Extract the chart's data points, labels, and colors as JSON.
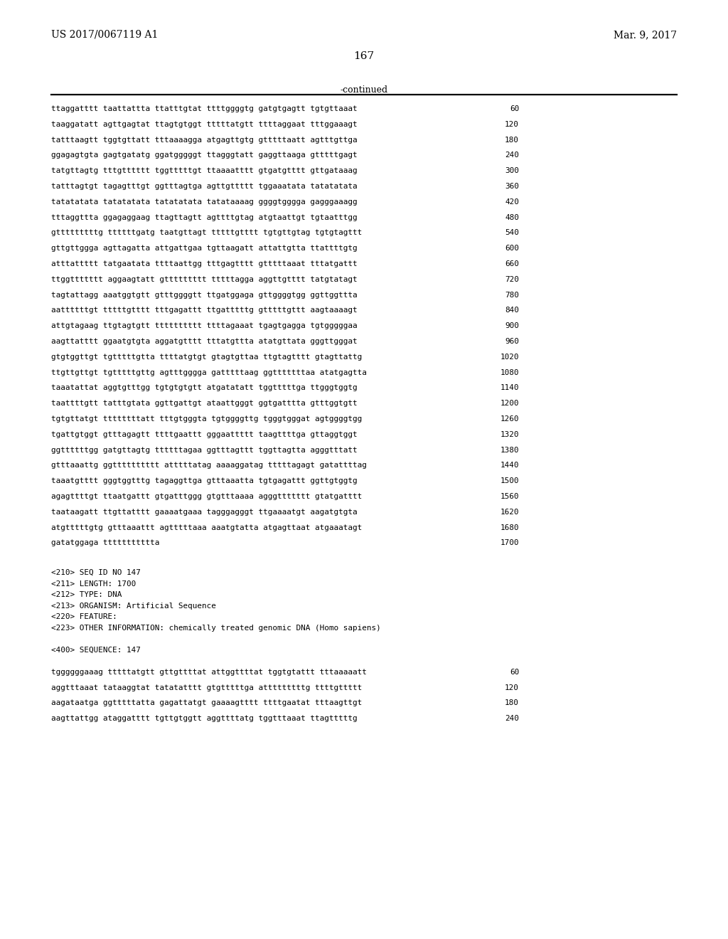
{
  "header_left": "US 2017/0067119 A1",
  "header_right": "Mar. 9, 2017",
  "page_number": "167",
  "continued_label": "-continued",
  "background_color": "#ffffff",
  "text_color": "#000000",
  "sequence_lines": [
    [
      "ttaggatttt taattattta ttatttgtat ttttggggtg gatgtgagtt tgtgttaaat",
      "60"
    ],
    [
      "taaggatatt agttgagtat ttagtgtggt tttttatgtt ttttaggaat tttggaaagt",
      "120"
    ],
    [
      "tatttaagtt tggtgttatt tttaaaagga atgagttgtg gtttttaatt agtttgttga",
      "180"
    ],
    [
      "ggagagtgta gagtgatatg ggatgggggt ttagggtatt gaggttaaga gtttttgagt",
      "240"
    ],
    [
      "tatgttagtg tttgtttttt tggtttttgt ttaaaatttt gtgatgtttt gttgataaag",
      "300"
    ],
    [
      "tatttagtgt tagagtttgt ggtttagtga agttgttttt tggaaatata tatatatata",
      "360"
    ],
    [
      "tatatatata tatatatata tatatatata tatataaaag ggggtgggga gagggaaagg",
      "420"
    ],
    [
      "tttaggttta ggagaggaag ttagttagtt agttttgtag atgtaattgt tgtaatttgg",
      "480"
    ],
    [
      "gtttttttttg ttttttgatg taatgttagt tttttgtttt tgtgttgtag tgtgtagttt",
      "540"
    ],
    [
      "gttgttggga agttagatta attgattgaa tgttaagatt attattgtta ttattttgtg",
      "600"
    ],
    [
      "atttattttt tatgaatata ttttaattgg tttgagtttt gtttttaaat tttatgattt",
      "660"
    ],
    [
      "ttggttttttt aggaagtatt gttttttttt tttttagga aggttgtttt tatgtatagt",
      "720"
    ],
    [
      "tagtattagg aaatggtgtt gtttggggtt ttgatggaga gttggggtgg ggttggttta",
      "780"
    ],
    [
      "aattttttgt tttttgtttt tttgagattt ttgatttttg gtttttgttt aagtaaaagt",
      "840"
    ],
    [
      "attgtagaag ttgtagtgtt tttttttttt ttttagaaat tgagtgagga tgtgggggaa",
      "900"
    ],
    [
      "aagttatttt ggaatgtgta aggatgtttt tttatgttta atatgttata gggttgggat",
      "960"
    ],
    [
      "gtgtggttgt tgtttttgtta ttttatgtgt gtagtgttaa ttgtagtttt gtagttattg",
      "1020"
    ],
    [
      "ttgttgttgt tgtttttgttg agtttgggga gatttttaag ggtttttttaa atatgagtta",
      "1080"
    ],
    [
      "taaatattat aggtgtttgg tgtgtgtgtt atgatatatt tggtttttga ttgggtggtg",
      "1140"
    ],
    [
      "taattttgtt tatttgtata ggttgattgt ataattgggt ggtgatttta gtttggtgtt",
      "1200"
    ],
    [
      "tgtgttatgt ttttttttatt tttgtgggta tgtggggttg tgggtgggat agtggggtgg",
      "1260"
    ],
    [
      "tgattgtggt gtttagagtt ttttgaattt gggaattttt taagttttga gttaggtggt",
      "1320"
    ],
    [
      "ggttttttgg gatgttagtg ttttttagaa ggtttagttt tggttagtta agggtttatt",
      "1380"
    ],
    [
      "gtttaaattg ggtttttttttt atttttatag aaaaggatag tttttagagt gatattttag",
      "1440"
    ],
    [
      "taaatgtttt gggtggtttg tagaggttga gtttaaatta tgtgagattt ggttgtggtg",
      "1500"
    ],
    [
      "agagttttgt ttaatgattt gtgatttggg gtgtttaaaa agggttttttt gtatgatttt",
      "1560"
    ],
    [
      "taataagatt ttgttatttt gaaaatgaaa tagggagggt ttgaaaatgt aagatgtgta",
      "1620"
    ],
    [
      "atgtttttgtg gtttaaattt agtttttaaa aaatgtatta atgagttaat atgaaatagt",
      "1680"
    ],
    [
      "gatatggaga ttttttttttta",
      "1700"
    ]
  ],
  "meta_header_lines": [
    "<210> SEQ ID NO 147",
    "<211> LENGTH: 1700",
    "<212> TYPE: DNA",
    "<213> ORGANISM: Artificial Sequence",
    "<220> FEATURE:",
    "<223> OTHER INFORMATION: chemically treated genomic DNA (Homo sapiens)"
  ],
  "seq400_label": "<400> SEQUENCE: 147",
  "seq400_lines": [
    [
      "tggggggaaag tttttatgtt gttgttttat attggttttat tggtgtattt tttaaaaatt",
      "60"
    ],
    [
      "aggtttaaat tataaggtat tatatatttt gtgtttttga atttttttttg ttttgttttt",
      "120"
    ],
    [
      "aagataatga ggtttttatta gagattatgt gaaaagtttt ttttgaatat tttaagttgt",
      "180"
    ],
    [
      "aagttattgg ataggatttt tgttgtggtt aggttttatg tggtttaaat ttagtttttg",
      "240"
    ]
  ]
}
